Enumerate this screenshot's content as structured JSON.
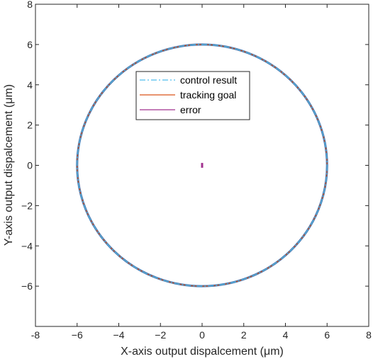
{
  "chart_data": {
    "type": "line",
    "xlabel": "X-axis output dispalcement (μm)",
    "ylabel": "Y-axis output dispalcement (μm)",
    "xlim": [
      -8,
      8
    ],
    "ylim": [
      -8,
      8
    ],
    "xticks": [
      -8,
      -6,
      -4,
      -2,
      0,
      2,
      4,
      6,
      8
    ],
    "yticks": [
      8,
      6,
      4,
      2,
      0,
      -2,
      -4,
      -6
    ],
    "xtick_labels": [
      "-8",
      "−6",
      "−4",
      "−2",
      "0",
      "2",
      "4",
      "6",
      "8"
    ],
    "ytick_labels": [
      "8",
      "6",
      "4",
      "2",
      "0",
      "−2",
      "−4",
      "−6"
    ],
    "grid": false,
    "legend_position": "upper-center",
    "series": [
      {
        "name": "control result",
        "shape": "circle",
        "center": [
          0,
          0
        ],
        "radius": 6.0,
        "color": "#4DBEEE",
        "style": "dash-dot"
      },
      {
        "name": "tracking goal",
        "shape": "circle",
        "center": [
          0,
          0
        ],
        "radius": 6.0,
        "color": "#D95319",
        "style": "solid"
      },
      {
        "name": "error",
        "shape": "segment",
        "x": [
          0,
          0
        ],
        "y": [
          -0.12,
          0.12
        ],
        "color": "#A2328F",
        "style": "solid"
      }
    ],
    "overlay_color": "#3D6FB0"
  }
}
